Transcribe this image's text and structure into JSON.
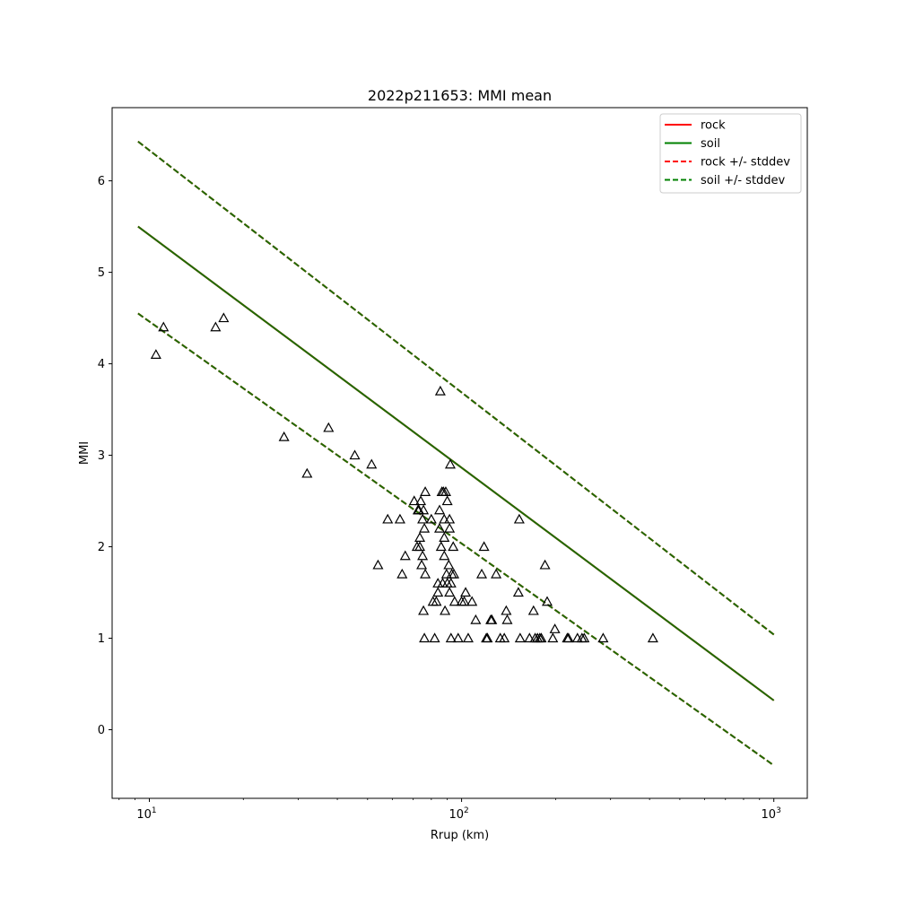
{
  "chart_data": {
    "type": "line",
    "title": "2022p211653: MMI mean",
    "xlabel": "Rrup (km)",
    "ylabel": "MMI",
    "x_scale": "log",
    "xlim": [
      7.6,
      1280
    ],
    "ylim": [
      -0.75,
      6.8
    ],
    "x_ticks": [
      {
        "value": 10,
        "base": "10",
        "exp": "1"
      },
      {
        "value": 100,
        "base": "10",
        "exp": "2"
      },
      {
        "value": 1000,
        "base": "10",
        "exp": "3"
      }
    ],
    "y_ticks": [
      0,
      1,
      2,
      3,
      4,
      5,
      6
    ],
    "grid": false,
    "legend_position": "top-right",
    "legend": [
      {
        "label": "rock",
        "color": "#ff0000",
        "style": "solid"
      },
      {
        "label": "soil",
        "color": "#008000",
        "style": "solid"
      },
      {
        "label": "rock +/- stddev",
        "color": "#ff0000",
        "style": "dashed"
      },
      {
        "label": "soil +/- stddev",
        "color": "#008000",
        "style": "dashed"
      }
    ],
    "series": [
      {
        "name": "rock",
        "color": "#ff0000",
        "style": "solid",
        "x": [
          9.2,
          1000
        ],
        "y": [
          5.5,
          0.32
        ]
      },
      {
        "name": "soil",
        "color": "#1f6b00",
        "style": "solid",
        "x": [
          9.2,
          1000
        ],
        "y": [
          5.5,
          0.32
        ]
      },
      {
        "name": "rock +/- stddev",
        "color": "#ff0000",
        "style": "dashed",
        "x": [
          9.2,
          1000
        ],
        "y": [
          6.43,
          1.04
        ]
      },
      {
        "name": "rock +/- stddev",
        "color": "#ff0000",
        "style": "dashed",
        "x": [
          9.2,
          1000
        ],
        "y": [
          4.55,
          -0.39
        ]
      },
      {
        "name": "soil +/- stddev",
        "color": "#1f6b00",
        "style": "dashed",
        "x": [
          9.2,
          1000
        ],
        "y": [
          6.43,
          1.04
        ]
      },
      {
        "name": "soil +/- stddev",
        "color": "#1f6b00",
        "style": "dashed",
        "x": [
          9.2,
          1000
        ],
        "y": [
          4.55,
          -0.39
        ]
      }
    ],
    "observations": {
      "marker": "triangle",
      "color": "#000000",
      "points": [
        {
          "x": 10.5,
          "y": 4.1
        },
        {
          "x": 11.1,
          "y": 4.4
        },
        {
          "x": 16.3,
          "y": 4.4
        },
        {
          "x": 17.3,
          "y": 4.5
        },
        {
          "x": 27,
          "y": 3.2
        },
        {
          "x": 32,
          "y": 2.8
        },
        {
          "x": 37.5,
          "y": 3.3
        },
        {
          "x": 45.5,
          "y": 3.0
        },
        {
          "x": 51.5,
          "y": 2.9
        },
        {
          "x": 54,
          "y": 1.8
        },
        {
          "x": 58,
          "y": 2.3
        },
        {
          "x": 63.5,
          "y": 2.3
        },
        {
          "x": 64.5,
          "y": 1.7
        },
        {
          "x": 66,
          "y": 1.9
        },
        {
          "x": 70.5,
          "y": 2.5
        },
        {
          "x": 72,
          "y": 2.0
        },
        {
          "x": 72.5,
          "y": 2.4
        },
        {
          "x": 73,
          "y": 2.4
        },
        {
          "x": 73.5,
          "y": 2.1
        },
        {
          "x": 73.5,
          "y": 2.0
        },
        {
          "x": 74,
          "y": 2.5
        },
        {
          "x": 74.5,
          "y": 1.8
        },
        {
          "x": 75,
          "y": 1.9
        },
        {
          "x": 75,
          "y": 2.3
        },
        {
          "x": 75.5,
          "y": 2.4
        },
        {
          "x": 75.5,
          "y": 1.3
        },
        {
          "x": 76,
          "y": 2.2
        },
        {
          "x": 76.5,
          "y": 2.6
        },
        {
          "x": 76.5,
          "y": 1.7
        },
        {
          "x": 76,
          "y": 1.0
        },
        {
          "x": 80,
          "y": 2.3
        },
        {
          "x": 81,
          "y": 1.4
        },
        {
          "x": 82,
          "y": 1.0
        },
        {
          "x": 83,
          "y": 1.4
        },
        {
          "x": 84,
          "y": 1.6
        },
        {
          "x": 84,
          "y": 1.5
        },
        {
          "x": 85,
          "y": 2.4
        },
        {
          "x": 85,
          "y": 2.2
        },
        {
          "x": 85.5,
          "y": 3.7
        },
        {
          "x": 86,
          "y": 2.0
        },
        {
          "x": 86.5,
          "y": 2.6
        },
        {
          "x": 87,
          "y": 1.6
        },
        {
          "x": 87.5,
          "y": 2.6
        },
        {
          "x": 88,
          "y": 2.3
        },
        {
          "x": 88,
          "y": 2.1
        },
        {
          "x": 88,
          "y": 1.9
        },
        {
          "x": 88.5,
          "y": 1.3
        },
        {
          "x": 89,
          "y": 2.6
        },
        {
          "x": 89.5,
          "y": 1.7
        },
        {
          "x": 90,
          "y": 2.5
        },
        {
          "x": 90,
          "y": 1.6
        },
        {
          "x": 91,
          "y": 1.8
        },
        {
          "x": 91.5,
          "y": 2.3
        },
        {
          "x": 91.5,
          "y": 2.2
        },
        {
          "x": 91.5,
          "y": 1.5
        },
        {
          "x": 92,
          "y": 2.9
        },
        {
          "x": 92.5,
          "y": 1.6
        },
        {
          "x": 92.5,
          "y": 1.0
        },
        {
          "x": 93,
          "y": 1.7
        },
        {
          "x": 94,
          "y": 2.0
        },
        {
          "x": 94.5,
          "y": 1.7
        },
        {
          "x": 95,
          "y": 1.4
        },
        {
          "x": 97.5,
          "y": 1.0
        },
        {
          "x": 100,
          "y": 1.4
        },
        {
          "x": 102,
          "y": 1.4
        },
        {
          "x": 103,
          "y": 1.5
        },
        {
          "x": 105,
          "y": 1.0
        },
        {
          "x": 108,
          "y": 1.4
        },
        {
          "x": 111,
          "y": 1.2
        },
        {
          "x": 116,
          "y": 1.7
        },
        {
          "x": 118,
          "y": 2.0
        },
        {
          "x": 120,
          "y": 1.0
        },
        {
          "x": 121,
          "y": 1.0
        },
        {
          "x": 124,
          "y": 1.2
        },
        {
          "x": 125,
          "y": 1.2
        },
        {
          "x": 129,
          "y": 1.7
        },
        {
          "x": 133,
          "y": 1.0
        },
        {
          "x": 137,
          "y": 1.0
        },
        {
          "x": 139,
          "y": 1.3
        },
        {
          "x": 140,
          "y": 1.2
        },
        {
          "x": 152,
          "y": 1.5
        },
        {
          "x": 153,
          "y": 2.3
        },
        {
          "x": 154,
          "y": 1.0
        },
        {
          "x": 165,
          "y": 1.0
        },
        {
          "x": 170,
          "y": 1.3
        },
        {
          "x": 172,
          "y": 1.0
        },
        {
          "x": 175,
          "y": 1.0
        },
        {
          "x": 178,
          "y": 1.0
        },
        {
          "x": 180,
          "y": 1.0
        },
        {
          "x": 185,
          "y": 1.8
        },
        {
          "x": 188,
          "y": 1.4
        },
        {
          "x": 196,
          "y": 1.0
        },
        {
          "x": 199,
          "y": 1.1
        },
        {
          "x": 218,
          "y": 1.0
        },
        {
          "x": 220,
          "y": 1.0
        },
        {
          "x": 235,
          "y": 1.0
        },
        {
          "x": 243,
          "y": 1.0
        },
        {
          "x": 247,
          "y": 1.0
        },
        {
          "x": 284,
          "y": 1.0
        },
        {
          "x": 410,
          "y": 1.0
        }
      ]
    }
  }
}
